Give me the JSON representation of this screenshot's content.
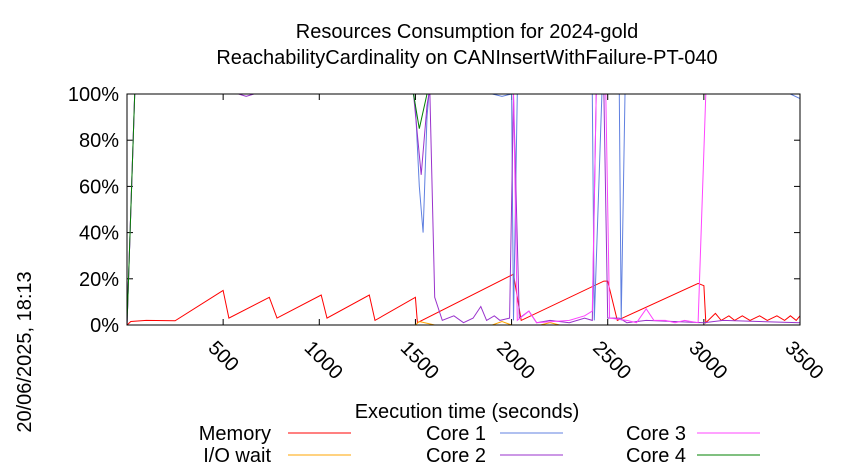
{
  "chart_data": {
    "type": "line",
    "title": "Resources Consumption for 2024-gold",
    "subtitle": "ReachabilityCardinality on CANInsertWithFailure-PT-040",
    "xlabel": "Execution time (seconds)",
    "side_label": "20/06/2025, 18:13",
    "xlim": [
      0,
      3500
    ],
    "ylim": [
      0,
      100
    ],
    "x_ticks": [
      500,
      1000,
      1500,
      2000,
      2500,
      3000,
      3500
    ],
    "y_ticks": [
      {
        "v": 0,
        "label": "0%"
      },
      {
        "v": 20,
        "label": "20%"
      },
      {
        "v": 40,
        "label": "40%"
      },
      {
        "v": 60,
        "label": "60%"
      },
      {
        "v": 80,
        "label": "80%"
      },
      {
        "v": 100,
        "label": "100%"
      }
    ],
    "legend_position": "bottom",
    "series": [
      {
        "name": "Memory",
        "color": "#ff0000",
        "points": [
          [
            0,
            0
          ],
          [
            20,
            1.5
          ],
          [
            100,
            2
          ],
          [
            250,
            1.8
          ],
          [
            500,
            15
          ],
          [
            530,
            3
          ],
          [
            740,
            12
          ],
          [
            780,
            3
          ],
          [
            1010,
            13
          ],
          [
            1040,
            3
          ],
          [
            1260,
            13
          ],
          [
            1290,
            2
          ],
          [
            1500,
            12
          ],
          [
            1510,
            1
          ],
          [
            2010,
            22
          ],
          [
            2050,
            2
          ],
          [
            2480,
            19
          ],
          [
            2500,
            19
          ],
          [
            2550,
            2
          ],
          [
            2970,
            18
          ],
          [
            3000,
            17
          ],
          [
            3010,
            1
          ],
          [
            3060,
            5
          ],
          [
            3090,
            2
          ],
          [
            3130,
            4
          ],
          [
            3160,
            2
          ],
          [
            3200,
            4
          ],
          [
            3240,
            2
          ],
          [
            3290,
            4
          ],
          [
            3330,
            2
          ],
          [
            3380,
            4
          ],
          [
            3420,
            2
          ],
          [
            3450,
            4
          ],
          [
            3480,
            2
          ],
          [
            3500,
            4
          ]
        ]
      },
      {
        "name": "I/O wait",
        "color": "#ffa500",
        "points": [
          [
            0,
            0
          ],
          [
            1500,
            0
          ],
          [
            1520,
            1.5
          ],
          [
            1600,
            0
          ],
          [
            1900,
            0
          ],
          [
            1950,
            1.5
          ],
          [
            2000,
            0
          ],
          [
            2150,
            0
          ],
          [
            2200,
            1
          ],
          [
            2250,
            0
          ],
          [
            3500,
            0
          ]
        ]
      },
      {
        "name": "Core 1",
        "color": "#6080e0",
        "points": [
          [
            0,
            0
          ],
          [
            40,
            100
          ],
          [
            1490,
            100
          ],
          [
            1500,
            95
          ],
          [
            1520,
            60
          ],
          [
            1540,
            40
          ],
          [
            1560,
            90
          ],
          [
            1570,
            100
          ],
          [
            1900,
            100
          ],
          [
            1950,
            99
          ],
          [
            2000,
            100
          ],
          [
            2010,
            2
          ],
          [
            2030,
            100
          ],
          [
            2420,
            100
          ],
          [
            2430,
            2
          ],
          [
            2470,
            100
          ],
          [
            2560,
            100
          ],
          [
            2570,
            2
          ],
          [
            2590,
            100
          ],
          [
            3450,
            100
          ],
          [
            3500,
            98
          ]
        ]
      },
      {
        "name": "Core 2",
        "color": "#9932cc",
        "points": [
          [
            0,
            0
          ],
          [
            40,
            100
          ],
          [
            580,
            100
          ],
          [
            620,
            99
          ],
          [
            660,
            100
          ],
          [
            1490,
            100
          ],
          [
            1530,
            65
          ],
          [
            1560,
            95
          ],
          [
            1570,
            100
          ],
          [
            1575,
            100
          ],
          [
            1600,
            12
          ],
          [
            1640,
            2
          ],
          [
            1700,
            4
          ],
          [
            1750,
            1
          ],
          [
            1800,
            3
          ],
          [
            1840,
            8
          ],
          [
            1870,
            2
          ],
          [
            1910,
            4
          ],
          [
            1940,
            2
          ],
          [
            1990,
            3
          ],
          [
            2010,
            100
          ],
          [
            2040,
            3
          ],
          [
            2090,
            6
          ],
          [
            2130,
            1
          ],
          [
            2200,
            2
          ],
          [
            2300,
            1
          ],
          [
            2380,
            3
          ],
          [
            2420,
            2
          ],
          [
            2440,
            100
          ],
          [
            2480,
            100
          ],
          [
            2500,
            3
          ],
          [
            2560,
            3
          ],
          [
            2600,
            1
          ],
          [
            2700,
            2
          ],
          [
            3000,
            1
          ],
          [
            3100,
            2
          ],
          [
            3500,
            1
          ]
        ]
      },
      {
        "name": "Core 3",
        "color": "#ff44ff",
        "points": [
          [
            0,
            0
          ],
          [
            40,
            100
          ],
          [
            1990,
            100
          ],
          [
            2010,
            100
          ],
          [
            2030,
            2
          ],
          [
            2090,
            6
          ],
          [
            2130,
            1
          ],
          [
            2300,
            2
          ],
          [
            2380,
            4
          ],
          [
            2420,
            6
          ],
          [
            2440,
            100
          ],
          [
            2490,
            100
          ],
          [
            2510,
            3
          ],
          [
            2600,
            2
          ],
          [
            2650,
            1
          ],
          [
            2700,
            7
          ],
          [
            2740,
            2
          ],
          [
            2800,
            2
          ],
          [
            2850,
            1
          ],
          [
            2900,
            2
          ],
          [
            2970,
            1
          ],
          [
            3010,
            100
          ],
          [
            3500,
            100
          ]
        ]
      },
      {
        "name": "Core 4",
        "color": "#008000",
        "points": [
          [
            0,
            0
          ],
          [
            40,
            100
          ],
          [
            1490,
            100
          ],
          [
            1520,
            85
          ],
          [
            1560,
            100
          ],
          [
            3500,
            100
          ]
        ]
      }
    ]
  }
}
